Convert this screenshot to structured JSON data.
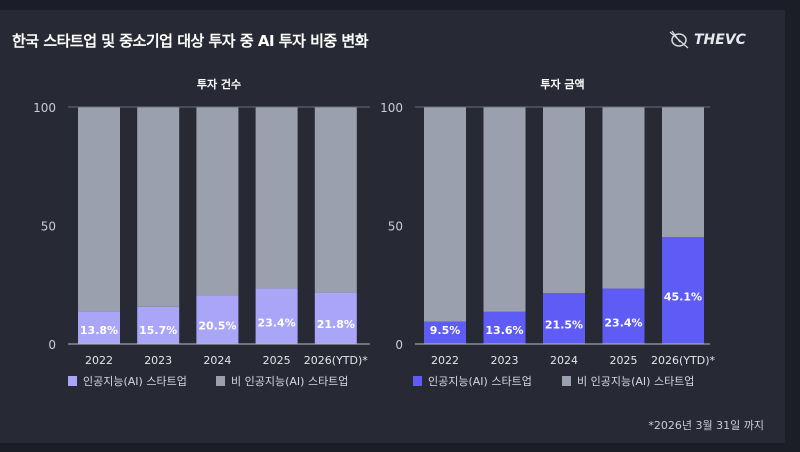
{
  "title": "한국 스타트업 및 중소기업 대상 투자 중 AI 투자 비중 변화",
  "logo_text": "THEVC",
  "footnote": "*2026년 3월 31일 까지",
  "chart_data": [
    {
      "type": "bar",
      "stacked": true,
      "title": "투자 건수",
      "categories": [
        "2022",
        "2023",
        "2024",
        "2025",
        "2026(YTD)*"
      ],
      "ylim": [
        0,
        100
      ],
      "yticks": [
        0,
        50,
        100
      ],
      "legend_position": "bottom",
      "series": [
        {
          "name": "인공지능(AI) 스타트업",
          "values": [
            13.8,
            15.7,
            20.5,
            23.4,
            21.8
          ],
          "labels": [
            "13.8%",
            "15.7%",
            "20.5%",
            "23.4%",
            "21.8%"
          ],
          "color": "#a9a6f8"
        },
        {
          "name": "비 인공지능(AI) 스타트업",
          "values": [
            86.2,
            84.3,
            79.5,
            76.6,
            78.2
          ],
          "color": "#9aa0ad"
        }
      ]
    },
    {
      "type": "bar",
      "stacked": true,
      "title": "투자 금액",
      "categories": [
        "2022",
        "2023",
        "2024",
        "2025",
        "2026(YTD)*"
      ],
      "ylim": [
        0,
        100
      ],
      "yticks": [
        0,
        50,
        100
      ],
      "legend_position": "bottom",
      "series": [
        {
          "name": "인공지능(AI) 스타트업",
          "values": [
            9.5,
            13.6,
            21.5,
            23.4,
            45.1
          ],
          "labels": [
            "9.5%",
            "13.6%",
            "21.5%",
            "23.4%",
            "45.1%"
          ],
          "color": "#5f5cf6"
        },
        {
          "name": "비 인공지능(AI) 스타트업",
          "values": [
            90.5,
            86.4,
            78.5,
            76.6,
            54.9
          ],
          "color": "#9aa0ad"
        }
      ]
    }
  ]
}
